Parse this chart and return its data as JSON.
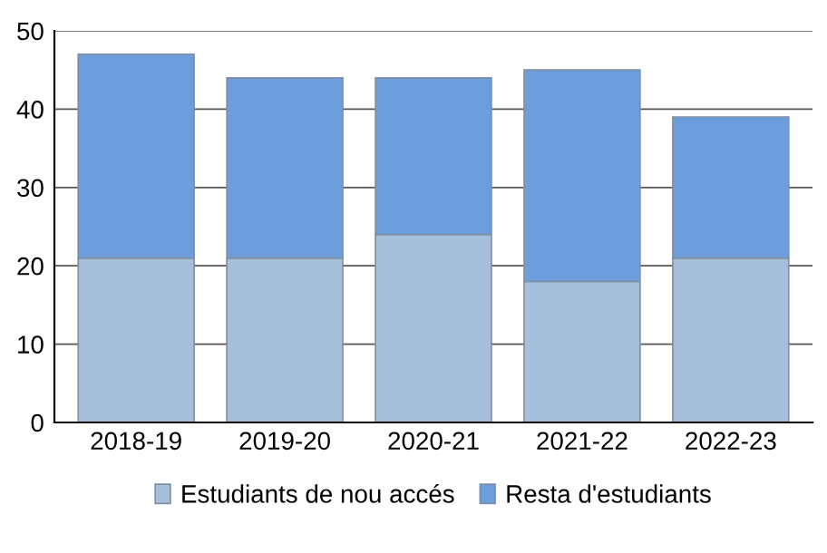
{
  "chart_data": {
    "type": "bar",
    "stacked": true,
    "categories": [
      "2018-19",
      "2019-20",
      "2020-21",
      "2021-22",
      "2022-23"
    ],
    "series": [
      {
        "name": "Estudiants de nou accés",
        "color": "#a6bfdb",
        "values": [
          21,
          21,
          24,
          18,
          21
        ]
      },
      {
        "name": "Resta d'estudiants",
        "color": "#6d9edc",
        "values": [
          26,
          23,
          20,
          27,
          18
        ]
      }
    ],
    "ylim": [
      0,
      50
    ],
    "yticks": [
      0,
      10,
      20,
      30,
      40,
      50
    ],
    "grid": "y",
    "legend": "bottom"
  }
}
